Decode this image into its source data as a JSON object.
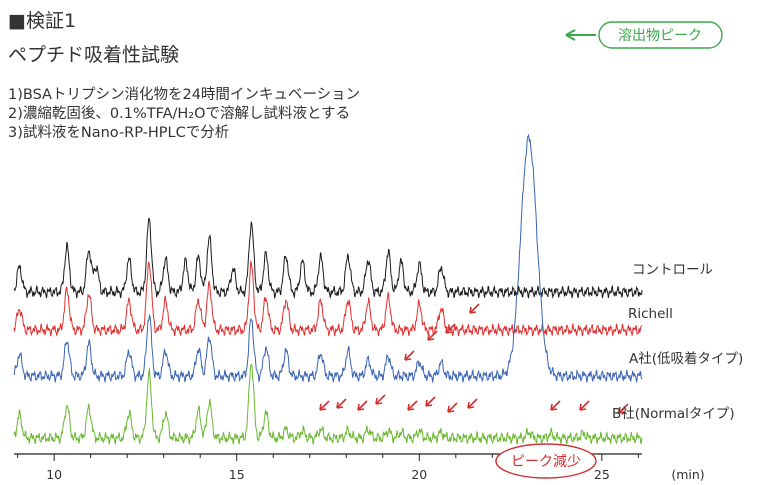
{
  "header": {
    "title": "■検証1",
    "subtitle": "ペプチド吸着性試験",
    "steps": [
      "1)BSAトリプシン消化物を24時間インキュベーション",
      "2)濃縮乾固後、0.1%TFA/H₂Oで溶解し試料液とする",
      "3)試料液をNano-RP-HPLCで分析"
    ]
  },
  "chart_data": {
    "type": "line",
    "xlabel": "(min)",
    "xlim": [
      8.9,
      26.1
    ],
    "xticks": [
      10,
      15,
      20,
      25
    ],
    "series": [
      {
        "name": "コントロール",
        "color": "#1a1a1a",
        "baseline": 0.0,
        "peaks": [
          [
            9.05,
            0.35
          ],
          [
            10.35,
            0.62
          ],
          [
            10.95,
            0.58
          ],
          [
            11.15,
            0.35
          ],
          [
            12.05,
            0.45
          ],
          [
            12.6,
            1.0
          ],
          [
            13.05,
            0.45
          ],
          [
            13.6,
            0.42
          ],
          [
            13.95,
            0.48
          ],
          [
            14.25,
            0.75
          ],
          [
            14.9,
            0.32
          ],
          [
            15.4,
            0.95
          ],
          [
            15.8,
            0.52
          ],
          [
            16.35,
            0.5
          ],
          [
            16.8,
            0.42
          ],
          [
            17.3,
            0.48
          ],
          [
            18.05,
            0.5
          ],
          [
            18.6,
            0.45
          ],
          [
            19.15,
            0.55
          ],
          [
            19.5,
            0.42
          ],
          [
            20.0,
            0.38
          ],
          [
            20.6,
            0.35
          ]
        ]
      },
      {
        "name": "Richell",
        "color": "#e03030",
        "baseline": 0.0,
        "peaks": [
          [
            9.05,
            0.3
          ],
          [
            10.35,
            0.55
          ],
          [
            10.95,
            0.5
          ],
          [
            12.05,
            0.4
          ],
          [
            12.6,
            0.95
          ],
          [
            13.05,
            0.4
          ],
          [
            13.95,
            0.42
          ],
          [
            14.25,
            0.62
          ],
          [
            15.4,
            0.9
          ],
          [
            15.8,
            0.45
          ],
          [
            16.35,
            0.42
          ],
          [
            17.3,
            0.4
          ],
          [
            18.05,
            0.42
          ],
          [
            18.6,
            0.38
          ],
          [
            19.15,
            0.45
          ],
          [
            20.0,
            0.35
          ],
          [
            20.6,
            0.3
          ]
        ]
      },
      {
        "name": "A社(低吸着タイプ)",
        "color": "#3a64b4",
        "baseline": 0.0,
        "peaks": [
          [
            9.05,
            0.3
          ],
          [
            10.35,
            0.5
          ],
          [
            10.95,
            0.45
          ],
          [
            12.05,
            0.35
          ],
          [
            12.6,
            0.85
          ],
          [
            13.05,
            0.35
          ],
          [
            13.95,
            0.38
          ],
          [
            14.25,
            0.55
          ],
          [
            15.4,
            0.8
          ],
          [
            15.8,
            0.4
          ],
          [
            16.35,
            0.35
          ],
          [
            17.3,
            0.32
          ],
          [
            18.05,
            0.35
          ],
          [
            18.6,
            0.22
          ],
          [
            19.15,
            0.28
          ],
          [
            20.0,
            0.2
          ],
          [
            20.6,
            0.18
          ],
          [
            23.0,
            3.3
          ]
        ]
      },
      {
        "name": "B社(Normalタイプ)",
        "color": "#6ab830",
        "baseline": 0.0,
        "peaks": [
          [
            9.05,
            0.32
          ],
          [
            10.35,
            0.45
          ],
          [
            10.95,
            0.42
          ],
          [
            12.05,
            0.35
          ],
          [
            12.6,
            0.88
          ],
          [
            13.05,
            0.35
          ],
          [
            13.95,
            0.38
          ],
          [
            14.25,
            0.5
          ],
          [
            15.4,
            1.05
          ],
          [
            15.8,
            0.35
          ],
          [
            16.35,
            0.12
          ],
          [
            16.8,
            0.1
          ],
          [
            17.3,
            0.12
          ],
          [
            18.05,
            0.1
          ],
          [
            18.6,
            0.12
          ],
          [
            19.15,
            0.1
          ],
          [
            19.5,
            0.08
          ],
          [
            20.0,
            0.1
          ],
          [
            20.6,
            0.08
          ],
          [
            23.0,
            0.08
          ],
          [
            23.6,
            0.06
          ],
          [
            24.5,
            0.06
          ]
        ]
      }
    ],
    "annotations": {
      "elution_peak": "溶出物ピーク",
      "peak_decrease": "ピーク減少"
    },
    "ann_colors": {
      "elution": "#3aa84a",
      "decrease": "#d03030"
    }
  }
}
